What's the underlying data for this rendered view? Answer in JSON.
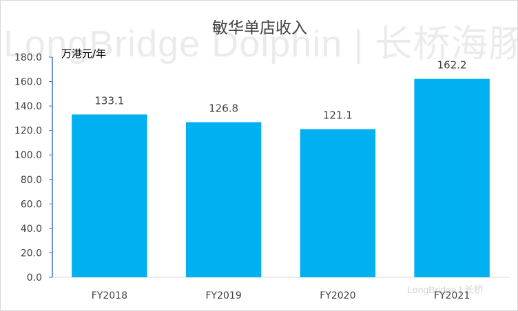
{
  "watermark": {
    "main": "LongBridge Dolphin | 长桥海豚投研",
    "corner": "LongBridge | 长桥"
  },
  "chart_data": {
    "type": "bar",
    "title": "敏华单店收入",
    "ylabel": "万港元/年",
    "categories": [
      "FY2018",
      "FY2019",
      "FY2020",
      "FY2021"
    ],
    "values": [
      133.1,
      126.8,
      121.1,
      162.2
    ],
    "data_labels": [
      "133.1",
      "126.8",
      "121.1",
      "162.2"
    ],
    "ylim": [
      0,
      180
    ],
    "yticks": [
      0,
      20,
      40,
      60,
      80,
      100,
      120,
      140,
      160,
      180
    ],
    "ytick_labels": [
      "0.0",
      "20.0",
      "40.0",
      "60.0",
      "80.0",
      "100.0",
      "120.0",
      "140.0",
      "160.0",
      "180.0"
    ],
    "grid": false,
    "bar_color": "#00b0f0"
  }
}
